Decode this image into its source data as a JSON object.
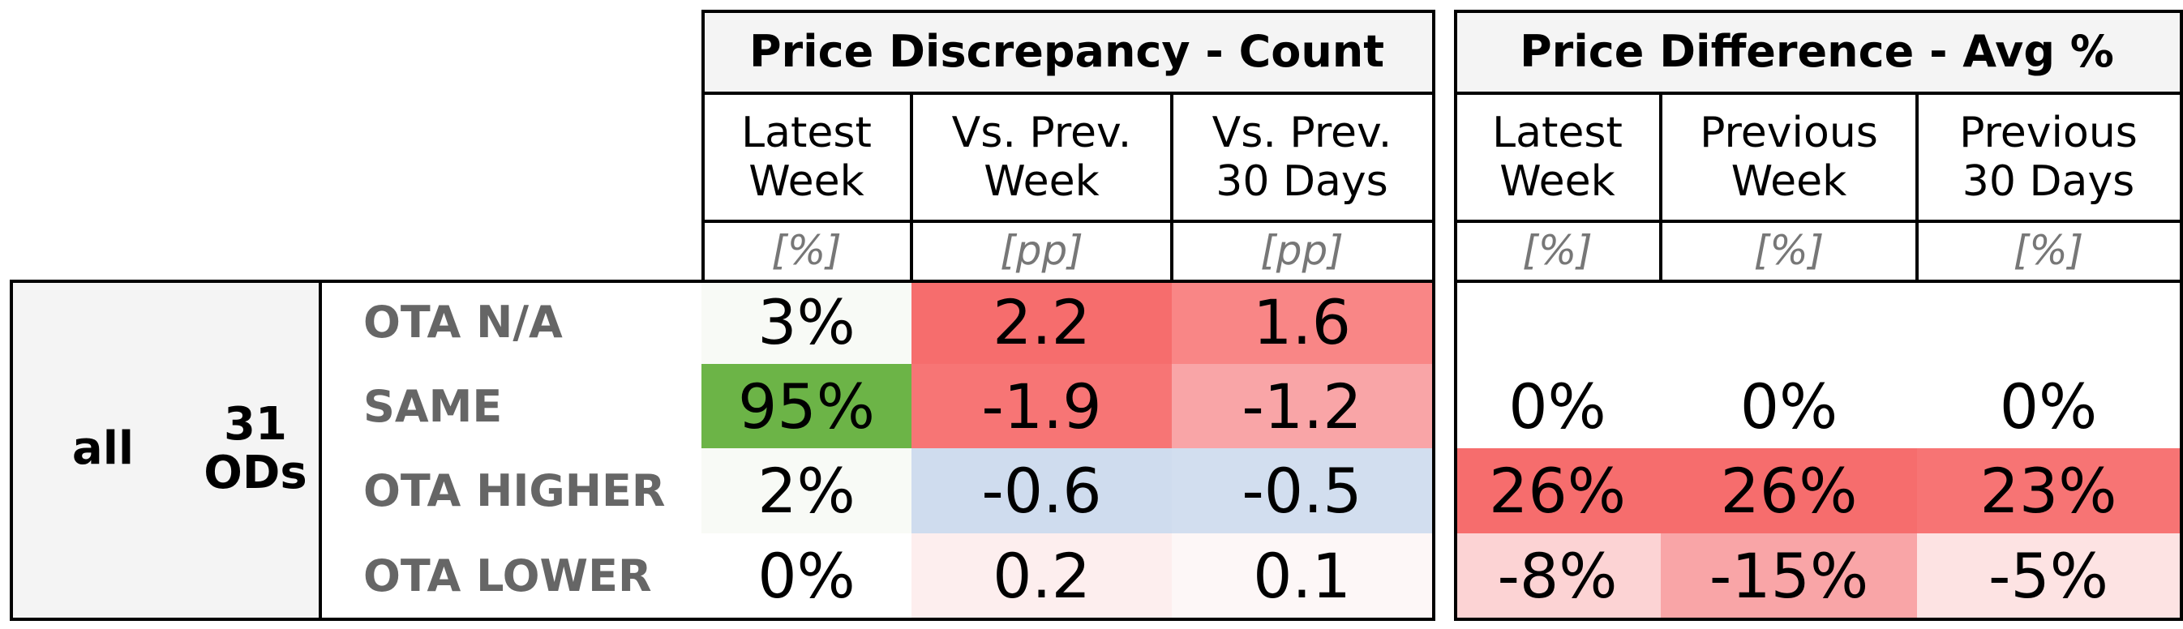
{
  "chart_data": {
    "type": "table",
    "group": {
      "label": "all",
      "count": "31\nODs"
    },
    "rows": [
      "OTA N/A",
      "SAME",
      "OTA HIGHER",
      "OTA LOWER"
    ],
    "tables": [
      {
        "title": "Price Discrepancy - Count",
        "columns": [
          {
            "header": "Latest\nWeek",
            "unit": "[%]"
          },
          {
            "header": "Vs. Prev.\nWeek",
            "unit": "[pp]"
          },
          {
            "header": "Vs. Prev.\n30 Days",
            "unit": "[pp]"
          }
        ],
        "cells": [
          [
            {
              "text": "3%",
              "value": 3,
              "color": "#f8faf6"
            },
            {
              "text": "2.2",
              "value": 2.2,
              "color": "#f66d6d"
            },
            {
              "text": "1.6",
              "value": 1.6,
              "color": "#f98686"
            }
          ],
          [
            {
              "text": "95%",
              "value": 95,
              "color": "#6cb447"
            },
            {
              "text": "-1.9",
              "value": -1.9,
              "color": "#f77575"
            },
            {
              "text": "-1.2",
              "value": -1.2,
              "color": "#f9a5a7"
            }
          ],
          [
            {
              "text": "2%",
              "value": 2,
              "color": "#f8faf6"
            },
            {
              "text": "-0.6",
              "value": -0.6,
              "color": "#cfdcee"
            },
            {
              "text": "-0.5",
              "value": -0.5,
              "color": "#d2deef"
            }
          ],
          [
            {
              "text": "0%",
              "value": 0,
              "color": "#ffffff"
            },
            {
              "text": "0.2",
              "value": 0.2,
              "color": "#fdeeee"
            },
            {
              "text": "0.1",
              "value": 0.1,
              "color": "#fdf7f7"
            }
          ]
        ]
      },
      {
        "title": "Price Difference - Avg %",
        "columns": [
          {
            "header": "Latest\nWeek",
            "unit": "[%]"
          },
          {
            "header": "Previous\nWeek",
            "unit": "[%]"
          },
          {
            "header": "Previous\n30 Days",
            "unit": "[%]"
          }
        ],
        "cells": [
          [
            {
              "text": "",
              "value": null,
              "color": "#ffffff"
            },
            {
              "text": "",
              "value": null,
              "color": "#ffffff"
            },
            {
              "text": "",
              "value": null,
              "color": "#ffffff"
            }
          ],
          [
            {
              "text": "0%",
              "value": 0,
              "color": "#ffffff"
            },
            {
              "text": "0%",
              "value": 0,
              "color": "#ffffff"
            },
            {
              "text": "0%",
              "value": 0,
              "color": "#ffffff"
            }
          ],
          [
            {
              "text": "26%",
              "value": 26,
              "color": "#f66d6d"
            },
            {
              "text": "26%",
              "value": 26,
              "color": "#f66d6d"
            },
            {
              "text": "23%",
              "value": 23,
              "color": "#f77474"
            }
          ],
          [
            {
              "text": "-8%",
              "value": -8,
              "color": "#fcd3d4"
            },
            {
              "text": "-15%",
              "value": -15,
              "color": "#f9a5a7"
            },
            {
              "text": "-5%",
              "value": -5,
              "color": "#fde3e3"
            }
          ]
        ]
      }
    ]
  }
}
